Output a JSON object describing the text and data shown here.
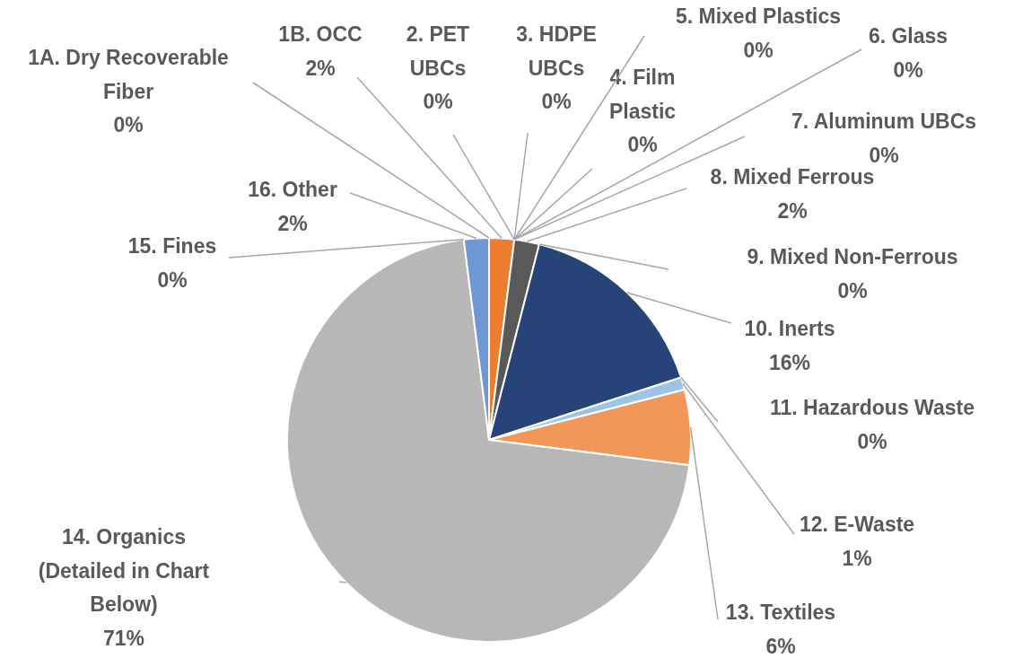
{
  "chart_data": {
    "type": "pie",
    "categories": [
      "1A. Dry Recoverable Fiber",
      "1B. OCC",
      "2. PET UBCs",
      "3. HDPE UBCs",
      "4. Film Plastic",
      "5. Mixed Plastics",
      "6. Glass",
      "7. Aluminum UBCs",
      "8. Mixed Ferrous",
      "9. Mixed Non-Ferrous",
      "10. Inerts",
      "11. Hazardous Waste",
      "12. E-Waste",
      "13. Textiles",
      "14. Organics (Detailed in Chart Below)",
      "15. Fines",
      "16. Other"
    ],
    "values": [
      0,
      2,
      0,
      0,
      0,
      0,
      0,
      0,
      2,
      0,
      16,
      0,
      1,
      6,
      71,
      0,
      2
    ],
    "value_labels": [
      "0%",
      "2%",
      "0%",
      "0%",
      "0%",
      "0%",
      "0%",
      "0%",
      "2%",
      "0%",
      "16%",
      "0%",
      "1%",
      "6%",
      "71%",
      "0%",
      "2%"
    ],
    "colors": [
      "#4472c4",
      "#ed7d31",
      "#a5a5a5",
      "#ffc000",
      "#5b9bd5",
      "#70ad47",
      "#264478",
      "#9e480e",
      "#595959",
      "#997300",
      "#264478",
      "#9dc3e6",
      "#9dc3e6",
      "#f1975a",
      "#b7b7b7",
      "#7cafdd",
      "#6f97d3"
    ],
    "legend": false
  }
}
